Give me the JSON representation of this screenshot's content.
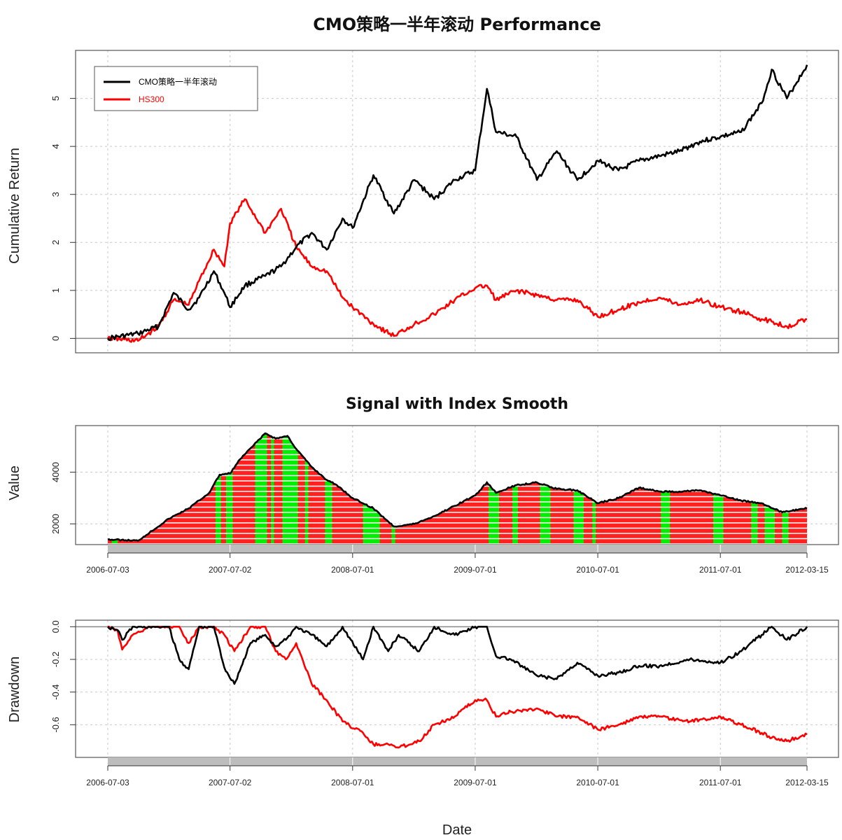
{
  "figure": {
    "xlabel": "Date",
    "x_tick_labels": [
      "2006-07-03",
      "2007-07-02",
      "2008-07-01",
      "2009-07-01",
      "2010-07-01",
      "2011-07-01",
      "2012-03-15"
    ]
  },
  "chart_data": [
    {
      "type": "line",
      "title": "CMO策略一半年滚动 Performance",
      "ylabel": "Cumulative Return",
      "ylim": [
        -0.3,
        6.0
      ],
      "yticks": [
        0,
        1,
        2,
        3,
        4,
        5
      ],
      "grid": true,
      "legend": "top-left",
      "x": [
        "2006-07-03",
        "2006-10-01",
        "2006-12-01",
        "2007-01-15",
        "2007-03-01",
        "2007-04-01",
        "2007-05-15",
        "2007-06-15",
        "2007-07-02",
        "2007-08-15",
        "2007-10-15",
        "2007-12-01",
        "2008-01-15",
        "2008-03-01",
        "2008-04-15",
        "2008-06-01",
        "2008-07-01",
        "2008-09-01",
        "2008-11-01",
        "2009-01-01",
        "2009-03-01",
        "2009-05-01",
        "2009-07-01",
        "2009-08-05",
        "2009-09-01",
        "2009-11-01",
        "2010-01-01",
        "2010-03-01",
        "2010-05-01",
        "2010-07-01",
        "2010-09-01",
        "2010-11-01",
        "2011-01-01",
        "2011-03-01",
        "2011-05-01",
        "2011-07-01",
        "2011-09-01",
        "2011-11-01",
        "2011-12-01",
        "2012-01-15",
        "2012-03-15"
      ],
      "series": [
        {
          "name": "CMO策略一半年滚动",
          "color": "#000000",
          "values": [
            0.0,
            0.1,
            0.25,
            0.95,
            0.6,
            0.85,
            1.4,
            0.95,
            0.65,
            1.1,
            1.3,
            1.5,
            1.9,
            2.2,
            1.85,
            2.5,
            2.3,
            3.4,
            2.6,
            3.3,
            2.9,
            3.3,
            3.5,
            5.2,
            4.3,
            4.2,
            3.3,
            3.9,
            3.3,
            3.7,
            3.5,
            3.7,
            3.8,
            3.9,
            4.1,
            4.2,
            4.3,
            4.9,
            5.6,
            5.0,
            5.7
          ]
        },
        {
          "name": "HS300",
          "color": "#ff0000",
          "values": [
            0.0,
            -0.05,
            0.25,
            0.8,
            0.7,
            1.2,
            1.85,
            1.5,
            2.4,
            2.9,
            2.2,
            2.7,
            1.9,
            1.5,
            1.4,
            0.85,
            0.65,
            0.3,
            0.05,
            0.3,
            0.5,
            0.8,
            1.05,
            1.1,
            0.8,
            1.0,
            0.9,
            0.8,
            0.8,
            0.45,
            0.6,
            0.75,
            0.85,
            0.7,
            0.8,
            0.65,
            0.55,
            0.4,
            0.35,
            0.25,
            0.4
          ]
        }
      ]
    },
    {
      "type": "area",
      "title": "Signal with Index Smooth",
      "ylabel": "Value",
      "ylim": [
        1200,
        5800
      ],
      "yticks": [
        2000,
        4000
      ],
      "grid": true,
      "x": [
        "2006-07-03",
        "2006-10-01",
        "2007-01-01",
        "2007-03-01",
        "2007-05-01",
        "2007-06-01",
        "2007-07-02",
        "2007-08-01",
        "2007-10-15",
        "2007-11-15",
        "2007-12-20",
        "2008-01-15",
        "2008-03-01",
        "2008-04-15",
        "2008-05-15",
        "2008-07-01",
        "2008-09-01",
        "2008-11-01",
        "2009-01-01",
        "2009-03-01",
        "2009-05-01",
        "2009-07-01",
        "2009-08-05",
        "2009-09-01",
        "2009-11-01",
        "2010-01-01",
        "2010-03-01",
        "2010-05-01",
        "2010-07-01",
        "2010-09-01",
        "2010-11-01",
        "2011-01-01",
        "2011-03-01",
        "2011-05-01",
        "2011-07-01",
        "2011-09-01",
        "2011-11-01",
        "2012-01-01",
        "2012-03-15"
      ],
      "series": [
        {
          "name": "Index",
          "color": "#000000",
          "values": [
            1400,
            1350,
            2200,
            2600,
            3200,
            3900,
            3950,
            4500,
            5500,
            5300,
            5400,
            4900,
            4200,
            3700,
            3500,
            3000,
            2600,
            1900,
            2000,
            2300,
            2700,
            3100,
            3600,
            3200,
            3500,
            3600,
            3350,
            3300,
            2800,
            3000,
            3400,
            3250,
            3250,
            3300,
            3100,
            2900,
            2800,
            2450,
            2600
          ]
        }
      ],
      "signal_colors": {
        "long": "#00ee00",
        "cash": "#ff2020"
      },
      "signal_long_ranges": [
        [
          "2006-07-15",
          "2006-08-01"
        ],
        [
          "2007-05-20",
          "2007-06-05"
        ],
        [
          "2007-06-20",
          "2007-07-10"
        ],
        [
          "2007-09-15",
          "2007-10-20"
        ],
        [
          "2007-11-01",
          "2007-11-10"
        ],
        [
          "2007-12-05",
          "2008-01-20"
        ],
        [
          "2008-02-10",
          "2008-02-20"
        ],
        [
          "2008-04-10",
          "2008-05-01"
        ],
        [
          "2008-08-01",
          "2008-09-20"
        ],
        [
          "2008-10-25",
          "2008-11-05"
        ],
        [
          "2009-08-10",
          "2009-09-10"
        ],
        [
          "2009-10-20",
          "2009-11-05"
        ],
        [
          "2010-01-10",
          "2010-02-10"
        ],
        [
          "2010-04-20",
          "2010-05-20"
        ],
        [
          "2010-06-15",
          "2010-06-25"
        ],
        [
          "2011-01-05",
          "2011-02-01"
        ],
        [
          "2011-06-10",
          "2011-07-10"
        ],
        [
          "2011-10-01",
          "2011-10-20"
        ],
        [
          "2011-11-10",
          "2011-12-10"
        ],
        [
          "2012-01-01",
          "2012-01-20"
        ]
      ]
    },
    {
      "type": "line",
      "title": "",
      "ylabel": "Drawdown",
      "ylim": [
        -0.8,
        0.04
      ],
      "yticks": [
        0.0,
        -0.2,
        -0.4,
        -0.6
      ],
      "ytick_labels": [
        "0.0",
        "-0.2",
        "-0.4",
        "-0.6"
      ],
      "grid": true,
      "x": [
        "2006-07-03",
        "2006-08-01",
        "2006-08-15",
        "2006-09-15",
        "2006-11-01",
        "2007-01-01",
        "2007-02-01",
        "2007-03-01",
        "2007-04-01",
        "2007-05-15",
        "2007-06-15",
        "2007-07-15",
        "2007-09-01",
        "2007-10-15",
        "2007-11-15",
        "2007-12-15",
        "2008-01-15",
        "2008-03-01",
        "2008-04-15",
        "2008-06-01",
        "2008-08-01",
        "2008-09-01",
        "2008-10-15",
        "2008-11-15",
        "2009-01-15",
        "2009-03-01",
        "2009-05-01",
        "2009-07-01",
        "2009-08-05",
        "2009-09-01",
        "2009-10-15",
        "2010-01-01",
        "2010-03-01",
        "2010-05-01",
        "2010-07-01",
        "2010-09-01",
        "2010-11-01",
        "2011-01-01",
        "2011-04-01",
        "2011-07-01",
        "2011-09-01",
        "2011-11-01",
        "2011-12-01",
        "2012-01-15",
        "2012-03-15"
      ],
      "series": [
        {
          "name": "CMO策略一半年滚动",
          "color": "#000000",
          "values": [
            0.0,
            -0.02,
            -0.08,
            0.0,
            0.0,
            0.0,
            -0.2,
            -0.26,
            0.0,
            0.0,
            -0.25,
            -0.35,
            -0.1,
            -0.05,
            -0.12,
            -0.08,
            0.0,
            -0.05,
            -0.12,
            0.0,
            -0.2,
            0.0,
            -0.15,
            -0.05,
            -0.15,
            0.0,
            -0.05,
            0.0,
            0.0,
            -0.18,
            -0.2,
            -0.3,
            -0.32,
            -0.22,
            -0.3,
            -0.28,
            -0.24,
            -0.24,
            -0.2,
            -0.22,
            -0.15,
            -0.05,
            0.0,
            -0.08,
            0.0
          ]
        },
        {
          "name": "HS300",
          "color": "#ff0000",
          "values": [
            0.0,
            -0.02,
            -0.14,
            -0.05,
            0.0,
            0.0,
            0.0,
            -0.1,
            0.0,
            0.0,
            -0.05,
            -0.15,
            0.0,
            0.0,
            -0.15,
            -0.2,
            -0.1,
            -0.35,
            -0.45,
            -0.58,
            -0.65,
            -0.72,
            -0.72,
            -0.74,
            -0.7,
            -0.6,
            -0.55,
            -0.45,
            -0.45,
            -0.55,
            -0.52,
            -0.5,
            -0.55,
            -0.55,
            -0.63,
            -0.6,
            -0.55,
            -0.55,
            -0.58,
            -0.55,
            -0.6,
            -0.65,
            -0.68,
            -0.7,
            -0.66
          ]
        }
      ]
    }
  ]
}
